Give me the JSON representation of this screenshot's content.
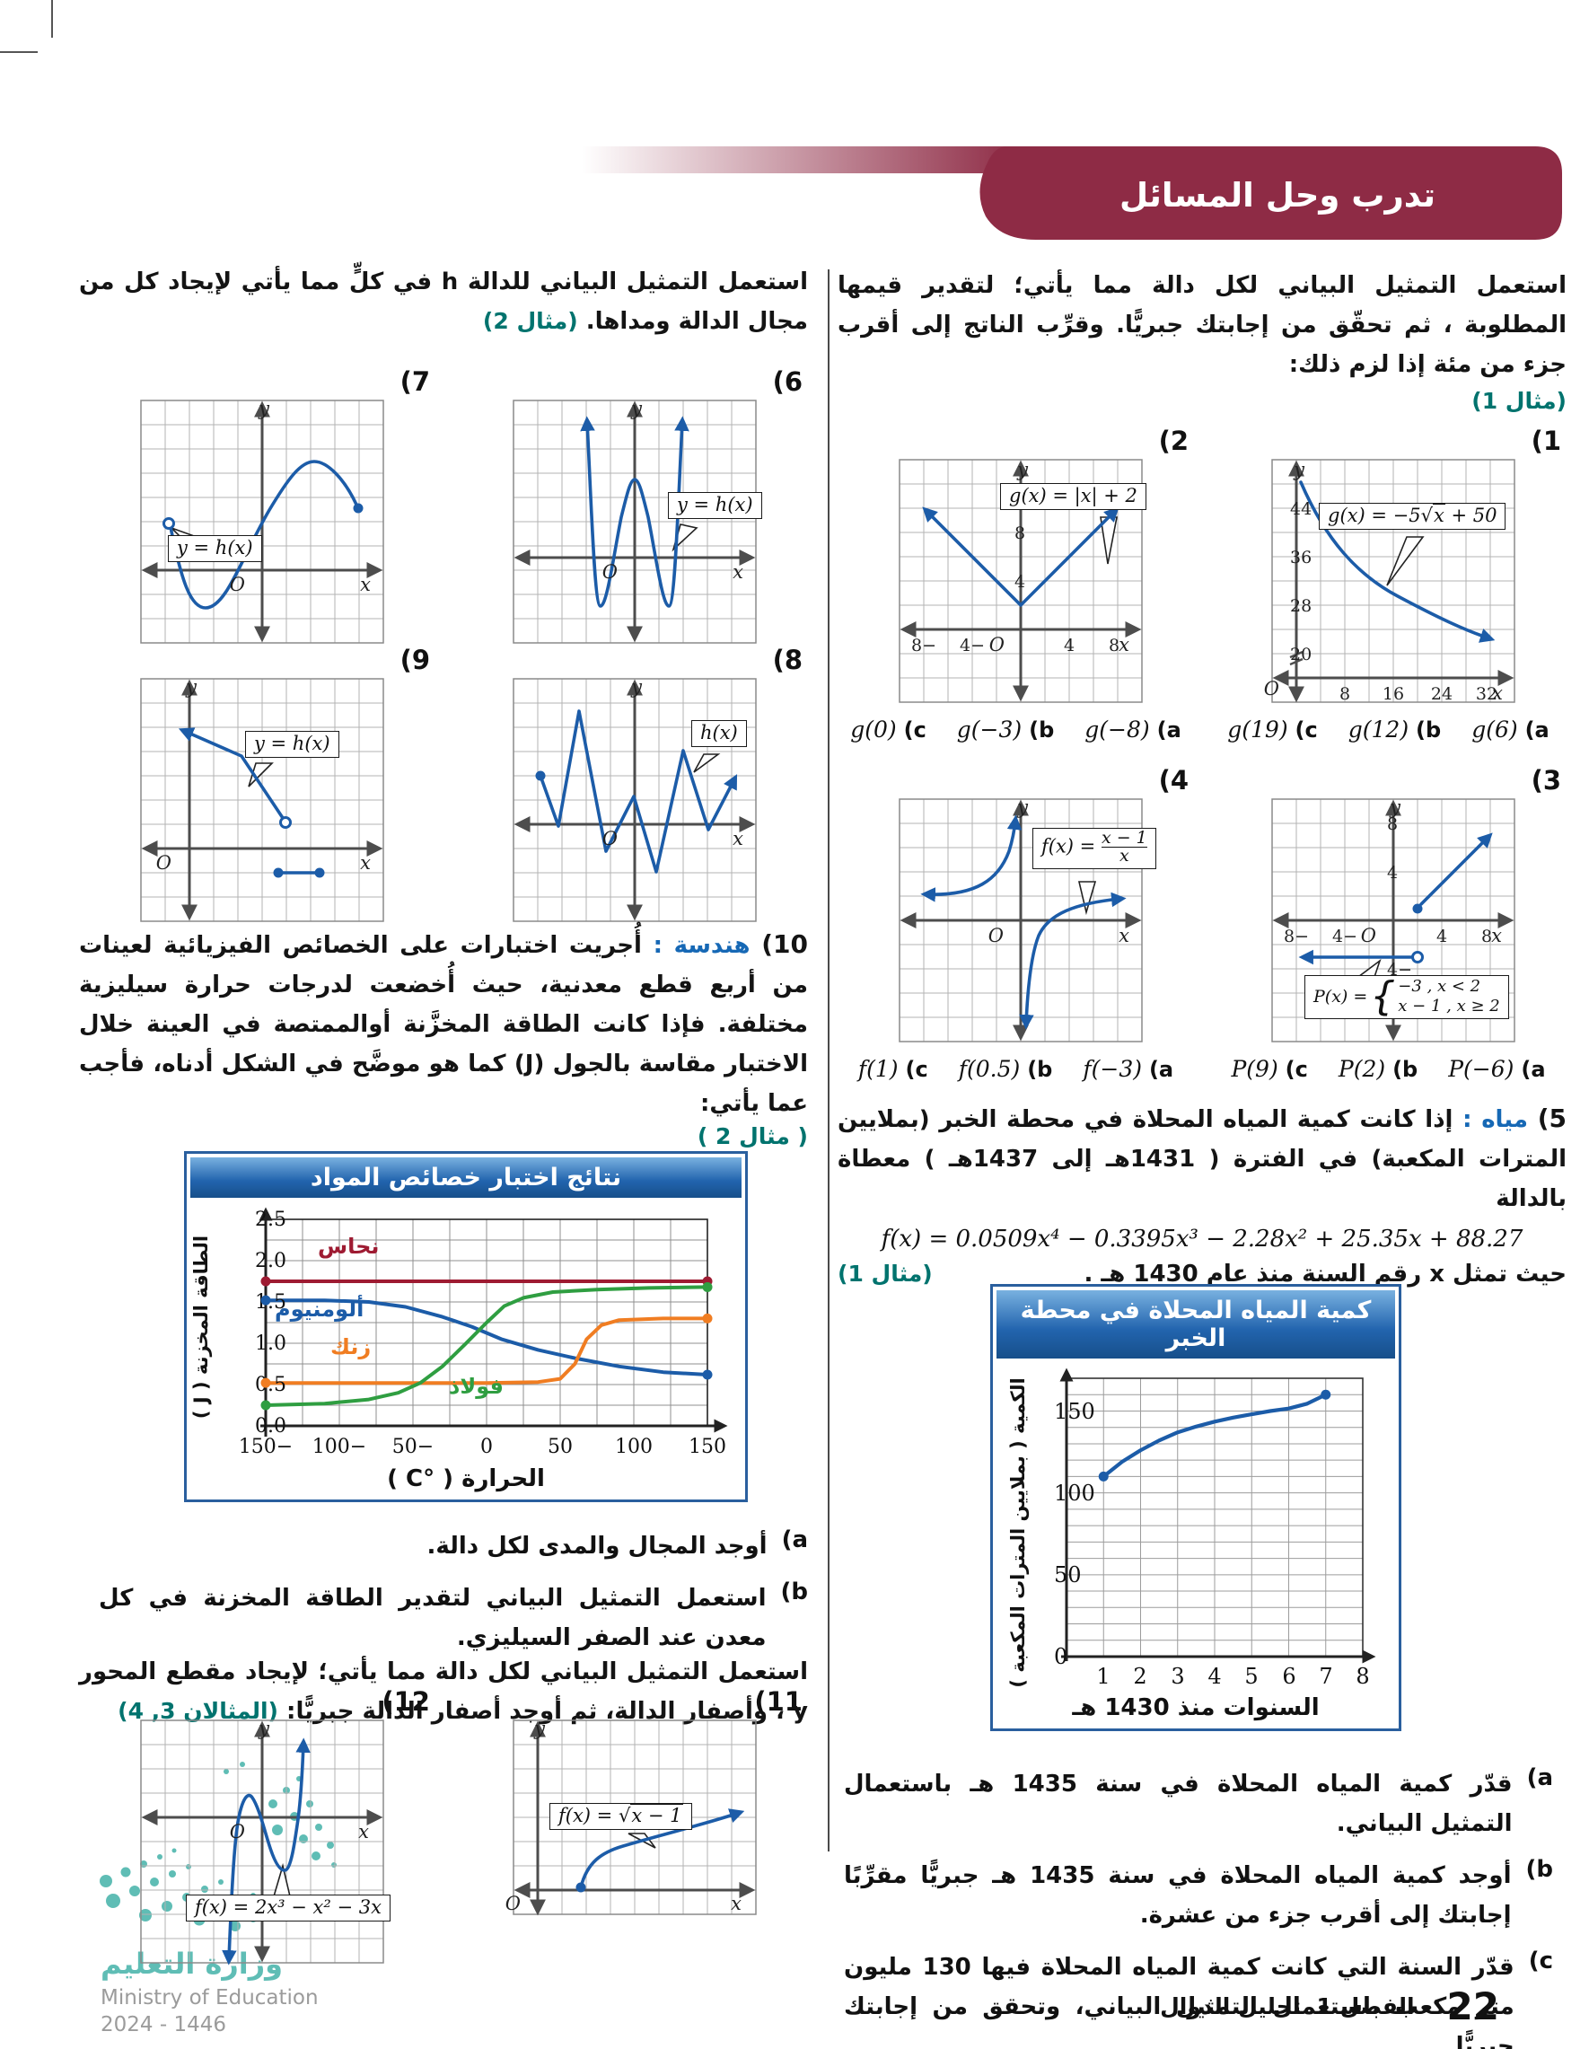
{
  "banner": {
    "title": "تدرب وحل المسائل"
  },
  "ax": {
    "x": "x",
    "y": "y",
    "o": "O",
    "sqrt": "√"
  },
  "right": {
    "intro": "استعمل التمثيل البياني لكل دالة مما يأتي؛ لتقدير قيمها المطلوبة ، ثم تحقّق من إجابتك جبريًّا. وقرِّب الناتج إلى أقرب جزء من مئة إذا لزم ذلك:",
    "intro_ref": "(مثال 1)",
    "g1": {
      "num": "(1",
      "lbl_pre": "g(x) = −5",
      "lbl_sqrt": "x",
      "lbl_suf": " + 50",
      "yticks": [
        "44",
        "36",
        "28",
        "20"
      ],
      "xticks": [
        "8",
        "16",
        "24",
        "32"
      ],
      "ans": [
        {
          "m": "(a",
          "v": "g(6)"
        },
        {
          "m": "(b",
          "v": "g(12)"
        },
        {
          "m": "(c",
          "v": "g(19)"
        }
      ]
    },
    "g2": {
      "num": "(2",
      "lbl": "g(x) = |x| + 2",
      "yticks": [
        "8",
        "4"
      ],
      "xticks": [
        "−8",
        "−4",
        "4",
        "8"
      ],
      "ans": [
        {
          "m": "(a",
          "v": "g(−8)"
        },
        {
          "m": "(b",
          "v": "g(−3)"
        },
        {
          "m": "(c",
          "v": "g(0)"
        }
      ]
    },
    "g3": {
      "num": "(3",
      "lbl_pre": "P(x) =",
      "r1a": "−3",
      "r1b": " , x < 2",
      "r2a": "x − 1",
      "r2b": " , x ≥ 2",
      "yticks": [
        "8",
        "4",
        "−4"
      ],
      "xticks": [
        "−8",
        "−4",
        "4",
        "8"
      ],
      "ans": [
        {
          "m": "(a",
          "v": "P(−6)"
        },
        {
          "m": "(b",
          "v": "P(2)"
        },
        {
          "m": "(c",
          "v": "P(9)"
        }
      ]
    },
    "g4": {
      "num": "(4",
      "lbl_pre": "f(x) = ",
      "fn": "x − 1",
      "fd": "x",
      "ans": [
        {
          "m": "(a",
          "v": "f(−3)"
        },
        {
          "m": "(b",
          "v": "f(0.5)"
        },
        {
          "m": "(c",
          "v": "f(1)"
        }
      ]
    },
    "q5": {
      "num": "(5",
      "tag": "مياه :",
      "t1": "إذا كانت كمية المياه المحلاة في محطة الخبر (بملايين المترات المكعبة) في الفترة ( 1431هـ إلى 1437هـ ) معطاة بالدالة",
      "formula": "f(x) = 0.0509x⁴ − 0.3395x³ − 2.28x² + 25.35x + 88.27",
      "t2": "حيث تمثل x رقم السنة منذ عام 1430 هـ .",
      "ref": "(مثال 1)",
      "parts": [
        {
          "m": "(a",
          "t": "قدّر كمية المياه المحلاة في سنة 1435 هـ باستعمال التمثيل البياني."
        },
        {
          "m": "(b",
          "t": "أوجد كمية المياه المحلاة في سنة 1435 هـ جبريًّا مقرِّبًا إجابتك إلى أقرب جزء من عشرة."
        },
        {
          "m": "(c",
          "t": "قدّر السنة التي كانت كمية المياه المحلاة فيها 130 مليون متر مكعب باستعمال التمثيل البياني، وتحقق من إجابتك جبريًّا."
        }
      ]
    }
  },
  "left": {
    "intro": "استعمل التمثيل البياني للدالة h في كلٍّ مما يأتي لإيجاد كل من مجال الدالة ومداها.",
    "intro_ref": "(مثال 2)",
    "g6": {
      "num": "(6",
      "lbl": "y = h(x)"
    },
    "g7": {
      "num": "(7",
      "lbl": "y = h(x)"
    },
    "g8": {
      "num": "(8",
      "lbl": "h(x)"
    },
    "g9": {
      "num": "(9",
      "lbl": "y = h(x)"
    },
    "q10": {
      "num": "(10",
      "tag": "هندسة :",
      "text": "أُجريت اختبارات على الخصائص الفيزيائية لعينات من أربع قطع معدنية، حيث أُخضعت لدرجات حرارة سيليزية مختلفة. فإذا كانت الطاقة المخزَّنة أوالممتصة في العينة خلال الاختبار مقاسة بالجول (J) كما هو موضَّح في الشكل أدناه، فأجب عما يأتي:",
      "ref": "( مثال 2 )",
      "parts": [
        {
          "m": "(a",
          "t": "أوجد المجال والمدى لكل دالة."
        },
        {
          "m": "(b",
          "t": "استعمل التمثيل البياني لتقدير الطاقة المخزنة في كل معدن عند الصفر السيليزي."
        }
      ]
    },
    "intro2": "استعمل التمثيل البياني لكل دالة مما يأتي؛ لإيجاد مقطع المحور y ، وأصفار الدالة، ثم أوجد أصفار الدالة جبريًّا:",
    "intro2_ref": "(المثالان 3, 4)",
    "g11": {
      "num": "(11",
      "lbl_pre": "f(x) = ",
      "lbl_sqrt": "x − 1"
    },
    "g12": {
      "num": "(12",
      "lbl": "f(x) = 2x³ − x² − 3x"
    }
  },
  "chart_data": [
    {
      "type": "line",
      "title": "كمية المياه المحلاة في محطة الخبر",
      "xlabel": "السنوات منذ 1430 هـ",
      "ylabel": "الكمية ( بملايين المترات المكعبة )",
      "xlim": [
        0,
        8
      ],
      "ylim": [
        0,
        170
      ],
      "grid": true,
      "legend_position": "none",
      "xticks": [
        "1",
        "2",
        "3",
        "4",
        "5",
        "6",
        "7",
        "8"
      ],
      "yticks": [
        "0",
        "50",
        "100",
        "150"
      ],
      "series": [
        {
          "name": "كمية المياه المحلاة",
          "color": "#1c5ca8",
          "points": [
            [
              1,
              110
            ],
            [
              1.5,
              119
            ],
            [
              2,
              126
            ],
            [
              2.5,
              132
            ],
            [
              3,
              137
            ],
            [
              3.5,
              140.5
            ],
            [
              4,
              143.5
            ],
            [
              4.5,
              146
            ],
            [
              5,
              148
            ],
            [
              5.5,
              150
            ],
            [
              6,
              151.5
            ],
            [
              6.5,
              154.5
            ],
            [
              7,
              160
            ]
          ]
        }
      ]
    },
    {
      "type": "line",
      "title": "نتائج اختبار خصائص المواد",
      "xlabel": "الحرارة ( °C )",
      "ylabel": "الطاقة المخزنة ( J )",
      "xlim": [
        -150,
        150
      ],
      "ylim": [
        0,
        2.5
      ],
      "grid": true,
      "legend_position": "inline",
      "xticks": [
        "−150",
        "−100",
        "−50",
        "0",
        "50",
        "100",
        "150"
      ],
      "yticks": [
        "2.5",
        "2.0",
        "1.5",
        "1.0",
        "0.5",
        "0.0"
      ],
      "series": [
        {
          "name": "نحاس",
          "color": "#9e1b32",
          "points": [
            [
              -150,
              1.75
            ],
            [
              0,
              1.75
            ],
            [
              150,
              1.75
            ]
          ]
        },
        {
          "name": "ألومنيوم",
          "color": "#1c5ca8",
          "points": [
            [
              -150,
              1.52
            ],
            [
              -110,
              1.52
            ],
            [
              -80,
              1.5
            ],
            [
              -55,
              1.44
            ],
            [
              -30,
              1.32
            ],
            [
              -10,
              1.2
            ],
            [
              10,
              1.05
            ],
            [
              35,
              0.92
            ],
            [
              60,
              0.82
            ],
            [
              90,
              0.72
            ],
            [
              120,
              0.65
            ],
            [
              150,
              0.62
            ]
          ]
        },
        {
          "name": "زنك",
          "color": "#f07d22",
          "points": [
            [
              -150,
              0.52
            ],
            [
              -50,
              0.52
            ],
            [
              0,
              0.52
            ],
            [
              35,
              0.53
            ],
            [
              50,
              0.57
            ],
            [
              60,
              0.75
            ],
            [
              68,
              1.05
            ],
            [
              78,
              1.22
            ],
            [
              90,
              1.28
            ],
            [
              120,
              1.3
            ],
            [
              150,
              1.3
            ]
          ]
        },
        {
          "name": "فولاذ",
          "color": "#2f9e41",
          "points": [
            [
              -150,
              0.25
            ],
            [
              -110,
              0.27
            ],
            [
              -80,
              0.32
            ],
            [
              -60,
              0.4
            ],
            [
              -45,
              0.52
            ],
            [
              -30,
              0.72
            ],
            [
              -15,
              0.98
            ],
            [
              0,
              1.25
            ],
            [
              12,
              1.45
            ],
            [
              25,
              1.55
            ],
            [
              45,
              1.62
            ],
            [
              75,
              1.65
            ],
            [
              110,
              1.67
            ],
            [
              150,
              1.68
            ]
          ]
        }
      ]
    }
  ],
  "footer": {
    "page": "22",
    "chapter": "الفصل 1",
    "book": "تحليل الدوال",
    "ministry_ar": "وزارة التعليم",
    "ministry_en": "Ministry of Education",
    "years": "2024 - 1446"
  }
}
